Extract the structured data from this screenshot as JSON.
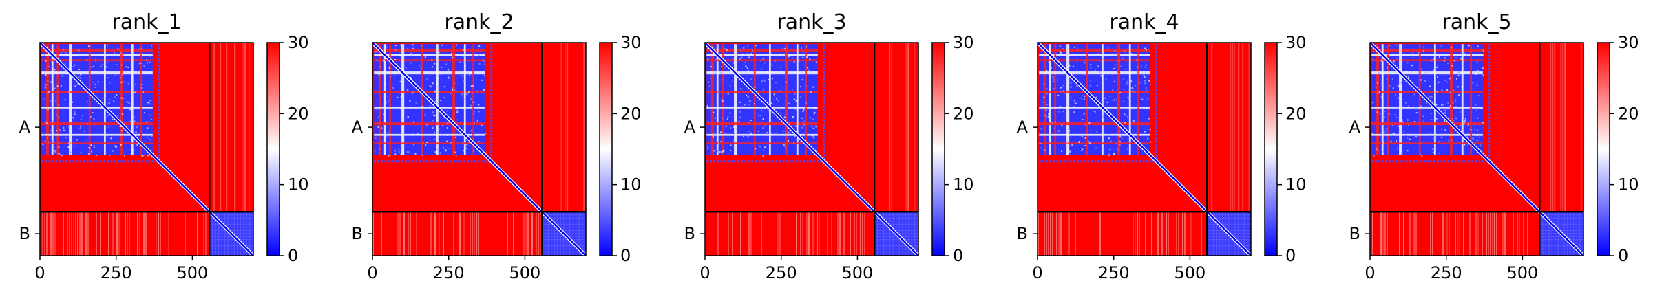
{
  "colors": {
    "low": "#0000ff",
    "mid": "#ffffff",
    "high": "#ff0000",
    "chain_divider": "#000000"
  },
  "chart_data": [
    {
      "type": "heatmap",
      "title": "rank_1",
      "xlim": [
        0,
        700
      ],
      "x_ticks": [
        0,
        250,
        500
      ],
      "y_chain_labels": [
        "A",
        "B"
      ],
      "chain_boundary": 556,
      "colorbar": {
        "range": [
          0,
          30
        ],
        "ticks": [
          0,
          10,
          20,
          30
        ],
        "colors": [
          "blue",
          "white",
          "red"
        ]
      },
      "blocks": [
        {
          "rows": [
            0,
            556
          ],
          "cols": [
            0,
            556
          ],
          "pattern": "partial-domain"
        },
        {
          "rows": [
            556,
            700
          ],
          "cols": [
            556,
            700
          ],
          "pattern": "low"
        },
        {
          "rows": [
            0,
            556
          ],
          "cols": [
            556,
            700
          ],
          "pattern": "high"
        },
        {
          "rows": [
            556,
            700
          ],
          "cols": [
            0,
            556
          ],
          "pattern": "high"
        }
      ]
    },
    {
      "type": "heatmap",
      "title": "rank_2",
      "xlim": [
        0,
        700
      ],
      "x_ticks": [
        0,
        250,
        500
      ],
      "y_chain_labels": [
        "A",
        "B"
      ],
      "chain_boundary": 556,
      "colorbar": {
        "range": [
          0,
          30
        ],
        "ticks": [
          0,
          10,
          20,
          30
        ],
        "colors": [
          "blue",
          "white",
          "red"
        ]
      },
      "blocks": [
        {
          "rows": [
            0,
            556
          ],
          "cols": [
            0,
            556
          ],
          "pattern": "partial-domain"
        },
        {
          "rows": [
            556,
            700
          ],
          "cols": [
            556,
            700
          ],
          "pattern": "low"
        },
        {
          "rows": [
            0,
            556
          ],
          "cols": [
            556,
            700
          ],
          "pattern": "high"
        },
        {
          "rows": [
            556,
            700
          ],
          "cols": [
            0,
            556
          ],
          "pattern": "high"
        }
      ]
    },
    {
      "type": "heatmap",
      "title": "rank_3",
      "xlim": [
        0,
        700
      ],
      "x_ticks": [
        0,
        250,
        500
      ],
      "y_chain_labels": [
        "A",
        "B"
      ],
      "chain_boundary": 556,
      "colorbar": {
        "range": [
          0,
          30
        ],
        "ticks": [
          0,
          10,
          20,
          30
        ],
        "colors": [
          "blue",
          "white",
          "red"
        ]
      },
      "blocks": [
        {
          "rows": [
            0,
            556
          ],
          "cols": [
            0,
            556
          ],
          "pattern": "partial-domain"
        },
        {
          "rows": [
            556,
            700
          ],
          "cols": [
            556,
            700
          ],
          "pattern": "low"
        },
        {
          "rows": [
            0,
            556
          ],
          "cols": [
            556,
            700
          ],
          "pattern": "high"
        },
        {
          "rows": [
            556,
            700
          ],
          "cols": [
            0,
            556
          ],
          "pattern": "high"
        }
      ]
    },
    {
      "type": "heatmap",
      "title": "rank_4",
      "xlim": [
        0,
        700
      ],
      "x_ticks": [
        0,
        250,
        500
      ],
      "y_chain_labels": [
        "A",
        "B"
      ],
      "chain_boundary": 556,
      "colorbar": {
        "range": [
          0,
          30
        ],
        "ticks": [
          0,
          10,
          20,
          30
        ],
        "colors": [
          "blue",
          "white",
          "red"
        ]
      },
      "blocks": [
        {
          "rows": [
            0,
            556
          ],
          "cols": [
            0,
            556
          ],
          "pattern": "partial-domain"
        },
        {
          "rows": [
            556,
            700
          ],
          "cols": [
            556,
            700
          ],
          "pattern": "low"
        },
        {
          "rows": [
            0,
            556
          ],
          "cols": [
            556,
            700
          ],
          "pattern": "high"
        },
        {
          "rows": [
            556,
            700
          ],
          "cols": [
            0,
            556
          ],
          "pattern": "high"
        }
      ]
    },
    {
      "type": "heatmap",
      "title": "rank_5",
      "xlim": [
        0,
        700
      ],
      "x_ticks": [
        0,
        250,
        500
      ],
      "y_chain_labels": [
        "A",
        "B"
      ],
      "chain_boundary": 556,
      "colorbar": {
        "range": [
          0,
          30
        ],
        "ticks": [
          0,
          10,
          20,
          30
        ],
        "colors": [
          "blue",
          "white",
          "red"
        ]
      },
      "blocks": [
        {
          "rows": [
            0,
            556
          ],
          "cols": [
            0,
            556
          ],
          "pattern": "partial-domain"
        },
        {
          "rows": [
            556,
            700
          ],
          "cols": [
            556,
            700
          ],
          "pattern": "low"
        },
        {
          "rows": [
            0,
            556
          ],
          "cols": [
            556,
            700
          ],
          "pattern": "high"
        },
        {
          "rows": [
            556,
            700
          ],
          "cols": [
            0,
            556
          ],
          "pattern": "high"
        }
      ]
    }
  ]
}
